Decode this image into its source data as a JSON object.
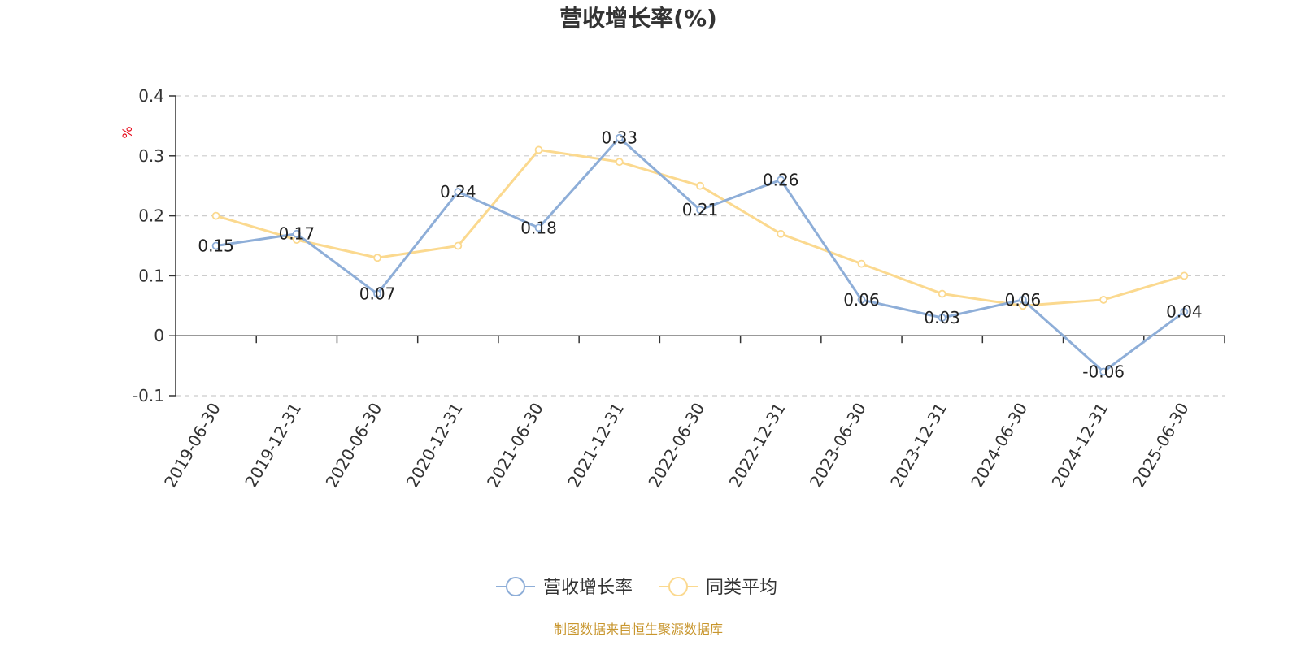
{
  "chart_data": {
    "type": "line",
    "title": "营收增长率(%)",
    "y_unit": "%",
    "categories": [
      "2019-06-30",
      "2019-12-31",
      "2020-06-30",
      "2020-12-31",
      "2021-06-30",
      "2021-12-31",
      "2022-06-30",
      "2022-12-31",
      "2023-06-30",
      "2023-12-31",
      "2024-06-30",
      "2024-12-31",
      "2025-06-30"
    ],
    "ylim": [
      -0.1,
      0.4
    ],
    "yticks": [
      "0.4",
      "0.3",
      "0.2",
      "0.1",
      "0",
      "-0.1"
    ],
    "ytick_values": [
      0.4,
      0.3,
      0.2,
      0.1,
      0,
      -0.1
    ],
    "grid": true,
    "legend_position": "bottom",
    "series": [
      {
        "name": "营收增长率",
        "color": "#8eaed8",
        "values": [
          0.15,
          0.17,
          0.07,
          0.24,
          0.18,
          0.33,
          0.21,
          0.26,
          0.06,
          0.03,
          0.06,
          -0.06,
          0.04
        ],
        "labels": [
          "0.15",
          "0.17",
          "0.07",
          "0.24",
          "0.18",
          "0.33",
          "0.21",
          "0.26",
          "0.06",
          "0.03",
          "0.06",
          "-0.06",
          "0.04"
        ]
      },
      {
        "name": "同类平均",
        "color": "#fbd98f",
        "values": [
          0.2,
          0.16,
          0.13,
          0.15,
          0.31,
          0.29,
          0.25,
          0.17,
          0.12,
          0.07,
          0.05,
          0.06,
          0.1
        ]
      }
    ],
    "source": "制图数据来自恒生聚源数据库"
  }
}
